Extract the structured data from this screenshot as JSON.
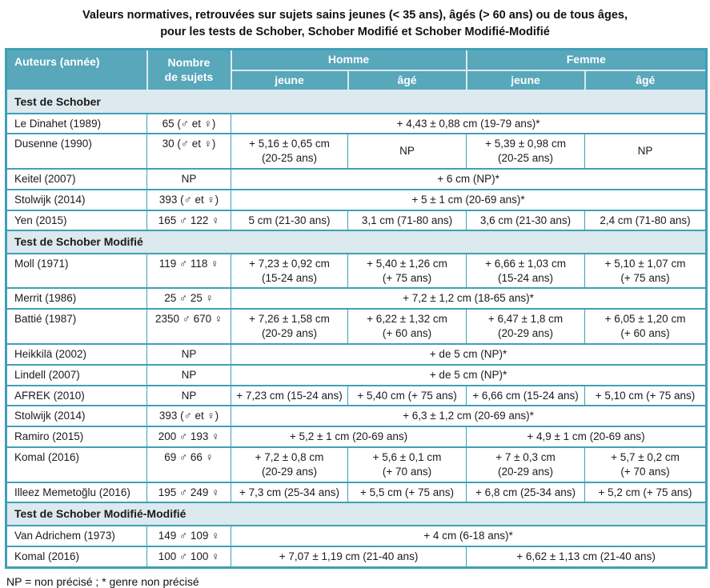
{
  "title": "Valeurs normatives, retrouvées sur sujets sains jeunes (< 35 ans), âgés (> 60 ans) ou de tous âges,\npour les tests de Schober, Schober Modifié et Schober Modifié-Modifié",
  "footnote": "NP = non précisé ; *  genre non précisé",
  "colors": {
    "header_bg": "#58a7ba",
    "section_bg": "#dce9ee",
    "border": "#3fa0b6",
    "header_divider": "#dcebf0",
    "text": "#1b1b1b"
  },
  "table": {
    "headers": {
      "authors": "Auteurs (année)",
      "subjects": "Nombre\nde sujets",
      "homme": "Homme",
      "femme": "Femme",
      "jeune": "jeune",
      "age": "âgé"
    },
    "rows": [
      {
        "type": "section",
        "label": "Test de Schober"
      },
      {
        "type": "data",
        "author": "Le Dinahet (1989)",
        "subjects": "65 (♂ et ♀)",
        "values": [
          {
            "text": "+ 4,43 ± 0,88 cm (19-79 ans)*",
            "colspan": 4
          }
        ]
      },
      {
        "type": "data",
        "author": "Dusenne (1990)",
        "subjects": "30 (♂ et ♀)",
        "values": [
          {
            "text": "+ 5,16 ± 0,65 cm\n(20-25 ans)"
          },
          {
            "text": "NP"
          },
          {
            "text": "+ 5,39 ± 0,98 cm\n(20-25 ans)"
          },
          {
            "text": "NP"
          }
        ]
      },
      {
        "type": "data",
        "author": "Keitel (2007)",
        "subjects": "NP",
        "values": [
          {
            "text": "+ 6 cm (NP)*",
            "colspan": 4
          }
        ]
      },
      {
        "type": "data",
        "author": "Stolwijk (2014)",
        "subjects": "393 (♂ et ♀)",
        "values": [
          {
            "text": "+ 5 ± 1 cm (20-69 ans)*",
            "colspan": 4
          }
        ]
      },
      {
        "type": "data",
        "author": "Yen (2015)",
        "subjects": "165 ♂ 122 ♀",
        "values": [
          {
            "text": "5 cm (21-30 ans)"
          },
          {
            "text": "3,1 cm (71-80 ans)"
          },
          {
            "text": "3,6 cm (21-30 ans)"
          },
          {
            "text": "2,4 cm (71-80 ans)"
          }
        ]
      },
      {
        "type": "section",
        "label": "Test de Schober Modifié"
      },
      {
        "type": "data",
        "author": "Moll (1971)",
        "subjects": "119 ♂ 118 ♀",
        "values": [
          {
            "text": "+ 7,23 ± 0,92 cm\n(15-24 ans)"
          },
          {
            "text": "+ 5,40 ± 1,26 cm\n(+ 75 ans)"
          },
          {
            "text": "+ 6,66 ± 1,03 cm\n(15-24 ans)"
          },
          {
            "text": "+ 5,10 ± 1,07 cm\n(+ 75 ans)"
          }
        ]
      },
      {
        "type": "data",
        "author": "Merrit (1986)",
        "subjects": "25 ♂ 25 ♀",
        "values": [
          {
            "text": "+ 7,2 ± 1,2 cm (18-65 ans)*",
            "colspan": 4
          }
        ]
      },
      {
        "type": "data",
        "author": "Battié (1987)",
        "subjects": "2350 ♂ 670 ♀",
        "values": [
          {
            "text": "+ 7,26 ± 1,58 cm\n(20-29 ans)"
          },
          {
            "text": "+ 6,22 ± 1,32 cm\n(+ 60 ans)"
          },
          {
            "text": "+ 6,47 ± 1,8 cm\n(20-29 ans)"
          },
          {
            "text": "+ 6,05 ± 1,20 cm\n(+ 60 ans)"
          }
        ]
      },
      {
        "type": "data",
        "author": "Heikkilä (2002)",
        "subjects": "NP",
        "values": [
          {
            "text": "+ de 5 cm (NP)*",
            "colspan": 4
          }
        ]
      },
      {
        "type": "data",
        "author": "Lindell (2007)",
        "subjects": "NP",
        "values": [
          {
            "text": "+ de 5 cm (NP)*",
            "colspan": 4
          }
        ]
      },
      {
        "type": "data",
        "author": "AFREK (2010)",
        "subjects": "NP",
        "values": [
          {
            "text": "+ 7,23 cm (15-24 ans)"
          },
          {
            "text": "+ 5,40 cm (+ 75 ans)"
          },
          {
            "text": "+ 6,66 cm (15-24 ans)"
          },
          {
            "text": "+ 5,10 cm (+ 75 ans)"
          }
        ]
      },
      {
        "type": "data",
        "author": "Stolwijk (2014)",
        "subjects": "393 (♂ et ♀)",
        "values": [
          {
            "text": "+ 6,3 ± 1,2 cm (20-69 ans)*",
            "colspan": 4
          }
        ]
      },
      {
        "type": "data",
        "author": "Ramiro (2015)",
        "subjects": "200 ♂ 193 ♀",
        "values": [
          {
            "text": "+ 5,2 ± 1 cm (20-69 ans)",
            "colspan": 2
          },
          {
            "text": "+ 4,9 ± 1 cm (20-69 ans)",
            "colspan": 2
          }
        ]
      },
      {
        "type": "data",
        "author": "Komal (2016)",
        "subjects": "69 ♂ 66 ♀",
        "values": [
          {
            "text": "+ 7,2 ± 0,8 cm\n(20-29 ans)"
          },
          {
            "text": "+ 5,6 ± 0,1 cm\n(+ 70 ans)"
          },
          {
            "text": "+ 7 ± 0,3 cm\n(20-29 ans)"
          },
          {
            "text": "+ 5,7 ± 0,2 cm\n(+ 70 ans)"
          }
        ]
      },
      {
        "type": "data",
        "author": "Illeez Memetoğlu (2016)",
        "subjects": "195 ♂ 249 ♀",
        "values": [
          {
            "text": "+ 7,3 cm (25-34 ans)"
          },
          {
            "text": "+ 5,5 cm (+ 75 ans)"
          },
          {
            "text": "+ 6,8 cm (25-34 ans)"
          },
          {
            "text": "+ 5,2 cm (+ 75 ans)"
          }
        ]
      },
      {
        "type": "section",
        "label": "Test de Schober Modifié-Modifié"
      },
      {
        "type": "data",
        "author": "Van Adrichem (1973)",
        "subjects": "149 ♂ 109 ♀",
        "values": [
          {
            "text": "+ 4 cm (6-18 ans)*",
            "colspan": 4
          }
        ]
      },
      {
        "type": "data",
        "author": "Komal (2016)",
        "subjects": "100 ♂ 100 ♀",
        "values": [
          {
            "text": "+ 7,07 ± 1,19 cm (21-40 ans)",
            "colspan": 2
          },
          {
            "text": "+ 6,62 ± 1,13 cm (21-40 ans)",
            "colspan": 2
          }
        ]
      }
    ]
  }
}
